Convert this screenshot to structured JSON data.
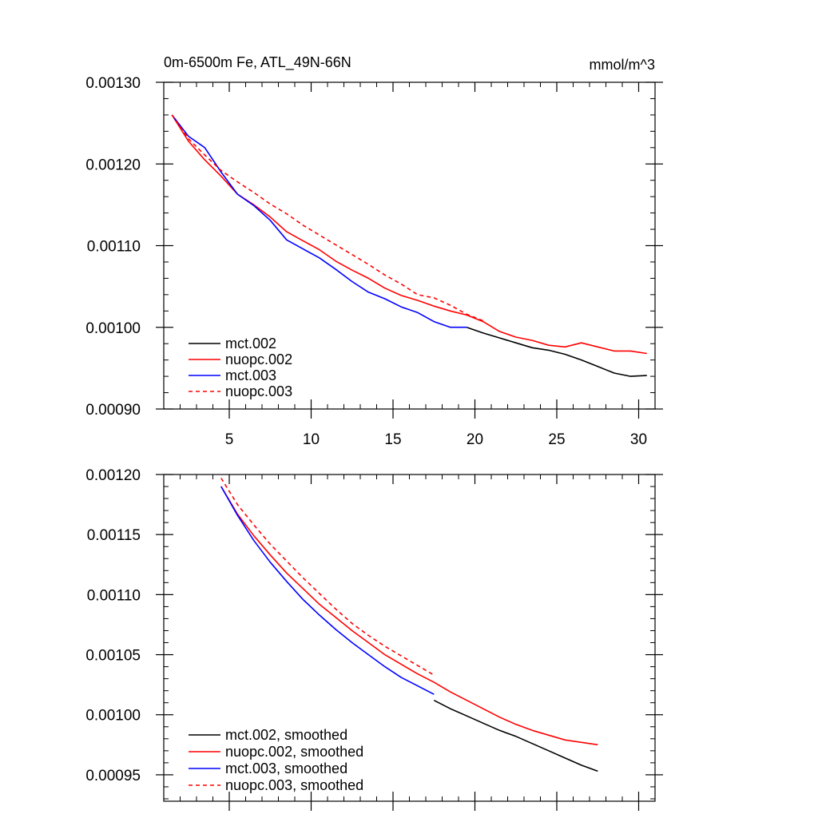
{
  "colors": {
    "black": "#000000",
    "red": "#ff0000",
    "blue": "#0000ff"
  },
  "chart_data": [
    {
      "type": "line",
      "title": "0m-6500m Fe, ATL_49N-66N",
      "units": "mmol/m^3",
      "xlim": [
        1,
        31
      ],
      "ylim": [
        0.0009,
        0.0013
      ],
      "xticks": [
        5,
        10,
        15,
        20,
        25,
        30
      ],
      "xtick_labels": [
        "5",
        "10",
        "15",
        "20",
        "25",
        "30"
      ],
      "yticks": [
        0.0009,
        0.001,
        0.0011,
        0.0012,
        0.0013
      ],
      "ytick_labels": [
        "0.00090",
        "0.00100",
        "0.00110",
        "0.00120",
        "0.00130"
      ],
      "legend_position": "bottom-left",
      "series": [
        {
          "name": "mct.002",
          "color": "#000000",
          "dash": false,
          "x": [
            19.5,
            20.5,
            21.5,
            22.5,
            23.5,
            24.5,
            25.5,
            26.5,
            27.5,
            28.5,
            29.5,
            30.5
          ],
          "y": [
            0.001,
            0.000993,
            0.000987,
            0.000981,
            0.000975,
            0.000972,
            0.000967,
            0.00096,
            0.000952,
            0.000944,
            0.00094,
            0.000941
          ]
        },
        {
          "name": "nuopc.002",
          "color": "#ff0000",
          "dash": false,
          "x": [
            1.5,
            2.5,
            3.5,
            4.5,
            5.5,
            6.5,
            7.5,
            8.5,
            9.5,
            10.5,
            11.5,
            12.5,
            13.5,
            14.5,
            15.5,
            16.5,
            17.5,
            18.5,
            19.5,
            20.5,
            21.5,
            22.5,
            23.5,
            24.5,
            25.5,
            26.5,
            27.5,
            28.5,
            29.5,
            30.5
          ],
          "y": [
            0.00126,
            0.001228,
            0.001205,
            0.001185,
            0.001163,
            0.00115,
            0.001135,
            0.001117,
            0.001106,
            0.001095,
            0.001081,
            0.00107,
            0.00106,
            0.001048,
            0.001039,
            0.001033,
            0.001026,
            0.00102,
            0.001015,
            0.001007,
            0.000995,
            0.000988,
            0.000984,
            0.000978,
            0.000976,
            0.000981,
            0.000976,
            0.000971,
            0.000971,
            0.000968
          ]
        },
        {
          "name": "mct.003",
          "color": "#0000ff",
          "dash": false,
          "x": [
            1.5,
            2.5,
            3.5,
            4.5,
            5.5,
            6.5,
            7.5,
            8.5,
            9.5,
            10.5,
            11.5,
            12.5,
            13.5,
            14.5,
            15.5,
            16.5,
            17.5,
            18.5,
            19.5
          ],
          "y": [
            0.00126,
            0.001234,
            0.00122,
            0.00119,
            0.001163,
            0.001149,
            0.001131,
            0.001107,
            0.001096,
            0.001085,
            0.001071,
            0.001056,
            0.001043,
            0.001035,
            0.001025,
            0.001018,
            0.001007,
            0.001,
            0.001
          ]
        },
        {
          "name": "nuopc.003",
          "color": "#ff0000",
          "dash": true,
          "x": [
            1.5,
            2.5,
            3.5,
            4.5,
            5.5,
            6.5,
            7.5,
            8.5,
            9.5,
            10.5,
            11.5,
            12.5,
            13.5,
            14.5,
            15.5,
            16.5,
            17.5,
            18.5,
            19.5,
            20.5
          ],
          "y": [
            0.00126,
            0.001231,
            0.001211,
            0.001192,
            0.001178,
            0.001165,
            0.001151,
            0.001139,
            0.001125,
            0.001113,
            0.001101,
            0.001089,
            0.001077,
            0.001064,
            0.001053,
            0.00104,
            0.001036,
            0.001027,
            0.001016,
            0.001008
          ]
        }
      ]
    },
    {
      "type": "line",
      "title": "",
      "xlim": [
        1,
        31
      ],
      "ylim": [
        0.000928,
        0.0012
      ],
      "xticks": [
        5,
        10,
        15,
        20,
        25,
        30
      ],
      "xtick_labels": [],
      "yticks": [
        0.00095,
        0.001,
        0.00105,
        0.0011,
        0.00115,
        0.0012
      ],
      "ytick_labels": [
        "0.00095",
        "0.00100",
        "0.00105",
        "0.00110",
        "0.00115",
        "0.00120"
      ],
      "legend_position": "bottom-left",
      "series": [
        {
          "name": "mct.002, smoothed",
          "color": "#000000",
          "dash": false,
          "x": [
            17.5,
            18.5,
            19.5,
            20.5,
            21.5,
            22.5,
            23.5,
            24.5,
            25.5,
            26.5,
            27.5
          ],
          "y": [
            0.001012,
            0.001005,
            0.000999,
            0.000993,
            0.000987,
            0.000982,
            0.000976,
            0.00097,
            0.000964,
            0.000958,
            0.000953
          ]
        },
        {
          "name": "nuopc.002, smoothed",
          "color": "#ff0000",
          "dash": false,
          "x": [
            4.5,
            5.5,
            6.5,
            7.5,
            8.5,
            9.5,
            10.5,
            11.5,
            12.5,
            13.5,
            14.5,
            15.5,
            16.5,
            17.5,
            18.5,
            19.5,
            20.5,
            21.5,
            22.5,
            23.5,
            24.5,
            25.5,
            26.5,
            27.5
          ],
          "y": [
            0.00119,
            0.001167,
            0.001149,
            0.001133,
            0.001118,
            0.001105,
            0.001092,
            0.001081,
            0.00107,
            0.00106,
            0.00105,
            0.001042,
            0.001034,
            0.001027,
            0.001019,
            0.001012,
            0.001005,
            0.000998,
            0.000992,
            0.000987,
            0.000983,
            0.000979,
            0.000977,
            0.000975
          ]
        },
        {
          "name": "mct.003, smoothed",
          "color": "#0000ff",
          "dash": false,
          "x": [
            4.5,
            5.5,
            6.5,
            7.5,
            8.5,
            9.5,
            10.5,
            11.5,
            12.5,
            13.5,
            14.5,
            15.5,
            16.5,
            17.5
          ],
          "y": [
            0.00119,
            0.001166,
            0.001145,
            0.001127,
            0.001111,
            0.001096,
            0.001083,
            0.001071,
            0.00106,
            0.00105,
            0.00104,
            0.001031,
            0.001024,
            0.001017
          ]
        },
        {
          "name": "nuopc.003, smoothed",
          "color": "#ff0000",
          "dash": true,
          "x": [
            4.5,
            5.5,
            6.5,
            7.5,
            8.5,
            9.5,
            10.5,
            11.5,
            12.5,
            13.5,
            14.5,
            15.5,
            16.5,
            17.5
          ],
          "y": [
            0.001197,
            0.001175,
            0.001158,
            0.001142,
            0.001128,
            0.001114,
            0.001101,
            0.001088,
            0.001076,
            0.001066,
            0.001057,
            0.001049,
            0.001041,
            0.001033
          ]
        }
      ]
    }
  ]
}
